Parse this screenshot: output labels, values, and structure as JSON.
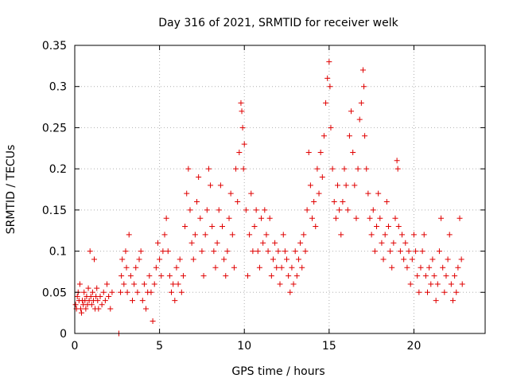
{
  "chart_data": {
    "type": "scatter",
    "title": "Day 316 of 2021, SRMTID for receiver welk",
    "xlabel": "GPS time / hours",
    "ylabel": "SRMTID / TECUs",
    "xlim": [
      0,
      24.2
    ],
    "ylim": [
      0,
      0.35
    ],
    "x_ticks": [
      0,
      5,
      10,
      15,
      20
    ],
    "x_tick_labels": [
      "0",
      "5",
      "10",
      "15",
      "20"
    ],
    "y_ticks": [
      0,
      0.05,
      0.1,
      0.15,
      0.2,
      0.25,
      0.3,
      0.35
    ],
    "y_tick_labels": [
      "0",
      "0.05",
      "0.1",
      "0.15",
      "0.2",
      "0.25",
      "0.3",
      "0.35"
    ],
    "grid": true,
    "marker": "+",
    "colors": {
      "series": "#e00000",
      "grid": "#b0b0b0",
      "axis": "#000000"
    },
    "series": [
      {
        "name": "SRMTID",
        "points": [
          [
            0.05,
            0.035
          ],
          [
            0.1,
            0.03
          ],
          [
            0.15,
            0.045
          ],
          [
            0.2,
            0.05
          ],
          [
            0.25,
            0.04
          ],
          [
            0.3,
            0.06
          ],
          [
            0.35,
            0.03
          ],
          [
            0.4,
            0.025
          ],
          [
            0.45,
            0.04
          ],
          [
            0.5,
            0.035
          ],
          [
            0.55,
            0.05
          ],
          [
            0.6,
            0.04
          ],
          [
            0.65,
            0.03
          ],
          [
            0.7,
            0.045
          ],
          [
            0.75,
            0.035
          ],
          [
            0.8,
            0.055
          ],
          [
            0.85,
            0.04
          ],
          [
            0.9,
            0.1
          ],
          [
            0.95,
            0.045
          ],
          [
            1.0,
            0.035
          ],
          [
            1.05,
            0.05
          ],
          [
            1.1,
            0.04
          ],
          [
            1.15,
            0.09
          ],
          [
            1.2,
            0.03
          ],
          [
            1.25,
            0.045
          ],
          [
            1.3,
            0.055
          ],
          [
            1.35,
            0.04
          ],
          [
            1.4,
            0.03
          ],
          [
            1.5,
            0.045
          ],
          [
            1.6,
            0.035
          ],
          [
            1.7,
            0.05
          ],
          [
            1.8,
            0.04
          ],
          [
            1.9,
            0.06
          ],
          [
            2.0,
            0.045
          ],
          [
            2.1,
            0.03
          ],
          [
            2.2,
            0.05
          ],
          [
            2.6,
            0.0
          ],
          [
            2.7,
            0.05
          ],
          [
            2.75,
            0.07
          ],
          [
            2.8,
            0.09
          ],
          [
            2.9,
            0.06
          ],
          [
            3.0,
            0.1
          ],
          [
            3.05,
            0.08
          ],
          [
            3.1,
            0.05
          ],
          [
            3.2,
            0.12
          ],
          [
            3.3,
            0.07
          ],
          [
            3.4,
            0.04
          ],
          [
            3.5,
            0.06
          ],
          [
            3.6,
            0.08
          ],
          [
            3.7,
            0.05
          ],
          [
            3.8,
            0.09
          ],
          [
            3.9,
            0.1
          ],
          [
            4.0,
            0.04
          ],
          [
            4.1,
            0.06
          ],
          [
            4.2,
            0.03
          ],
          [
            4.3,
            0.05
          ],
          [
            4.4,
            0.07
          ],
          [
            4.5,
            0.05
          ],
          [
            4.6,
            0.015
          ],
          [
            4.7,
            0.06
          ],
          [
            4.8,
            0.08
          ],
          [
            4.9,
            0.11
          ],
          [
            5.0,
            0.09
          ],
          [
            5.1,
            0.07
          ],
          [
            5.2,
            0.1
          ],
          [
            5.3,
            0.12
          ],
          [
            5.4,
            0.14
          ],
          [
            5.5,
            0.1
          ],
          [
            5.6,
            0.07
          ],
          [
            5.7,
            0.05
          ],
          [
            5.8,
            0.06
          ],
          [
            5.9,
            0.04
          ],
          [
            6.0,
            0.08
          ],
          [
            6.1,
            0.06
          ],
          [
            6.2,
            0.09
          ],
          [
            6.3,
            0.05
          ],
          [
            6.4,
            0.07
          ],
          [
            6.5,
            0.13
          ],
          [
            6.6,
            0.17
          ],
          [
            6.7,
            0.2
          ],
          [
            6.8,
            0.15
          ],
          [
            6.9,
            0.11
          ],
          [
            7.0,
            0.09
          ],
          [
            7.1,
            0.12
          ],
          [
            7.2,
            0.16
          ],
          [
            7.3,
            0.19
          ],
          [
            7.4,
            0.14
          ],
          [
            7.5,
            0.1
          ],
          [
            7.6,
            0.07
          ],
          [
            7.7,
            0.12
          ],
          [
            7.8,
            0.15
          ],
          [
            7.9,
            0.2
          ],
          [
            8.0,
            0.18
          ],
          [
            8.1,
            0.13
          ],
          [
            8.2,
            0.1
          ],
          [
            8.3,
            0.08
          ],
          [
            8.4,
            0.11
          ],
          [
            8.5,
            0.15
          ],
          [
            8.6,
            0.18
          ],
          [
            8.7,
            0.13
          ],
          [
            8.8,
            0.09
          ],
          [
            8.9,
            0.07
          ],
          [
            9.0,
            0.1
          ],
          [
            9.1,
            0.14
          ],
          [
            9.2,
            0.17
          ],
          [
            9.3,
            0.12
          ],
          [
            9.4,
            0.08
          ],
          [
            9.5,
            0.2
          ],
          [
            9.6,
            0.16
          ],
          [
            9.7,
            0.22
          ],
          [
            9.8,
            0.28
          ],
          [
            9.85,
            0.27
          ],
          [
            9.9,
            0.25
          ],
          [
            9.95,
            0.2
          ],
          [
            10.0,
            0.23
          ],
          [
            10.1,
            0.15
          ],
          [
            10.2,
            0.07
          ],
          [
            10.3,
            0.12
          ],
          [
            10.4,
            0.17
          ],
          [
            10.5,
            0.1
          ],
          [
            10.6,
            0.13
          ],
          [
            10.7,
            0.15
          ],
          [
            10.8,
            0.1
          ],
          [
            10.9,
            0.08
          ],
          [
            11.0,
            0.14
          ],
          [
            11.1,
            0.11
          ],
          [
            11.2,
            0.15
          ],
          [
            11.3,
            0.12
          ],
          [
            11.4,
            0.1
          ],
          [
            11.5,
            0.14
          ],
          [
            11.6,
            0.07
          ],
          [
            11.7,
            0.09
          ],
          [
            11.8,
            0.11
          ],
          [
            11.9,
            0.08
          ],
          [
            12.0,
            0.1
          ],
          [
            12.1,
            0.06
          ],
          [
            12.2,
            0.08
          ],
          [
            12.3,
            0.12
          ],
          [
            12.4,
            0.1
          ],
          [
            12.5,
            0.09
          ],
          [
            12.6,
            0.07
          ],
          [
            12.7,
            0.05
          ],
          [
            12.8,
            0.08
          ],
          [
            12.9,
            0.06
          ],
          [
            13.0,
            0.1
          ],
          [
            13.1,
            0.07
          ],
          [
            13.2,
            0.09
          ],
          [
            13.3,
            0.11
          ],
          [
            13.4,
            0.08
          ],
          [
            13.5,
            0.12
          ],
          [
            13.6,
            0.1
          ],
          [
            13.7,
            0.15
          ],
          [
            13.8,
            0.22
          ],
          [
            13.9,
            0.18
          ],
          [
            14.0,
            0.14
          ],
          [
            14.1,
            0.16
          ],
          [
            14.2,
            0.13
          ],
          [
            14.3,
            0.2
          ],
          [
            14.4,
            0.17
          ],
          [
            14.5,
            0.22
          ],
          [
            14.6,
            0.19
          ],
          [
            14.7,
            0.24
          ],
          [
            14.8,
            0.28
          ],
          [
            14.9,
            0.31
          ],
          [
            15.0,
            0.33
          ],
          [
            15.05,
            0.3
          ],
          [
            15.1,
            0.25
          ],
          [
            15.2,
            0.2
          ],
          [
            15.3,
            0.16
          ],
          [
            15.4,
            0.14
          ],
          [
            15.5,
            0.18
          ],
          [
            15.6,
            0.15
          ],
          [
            15.7,
            0.12
          ],
          [
            15.8,
            0.16
          ],
          [
            15.9,
            0.2
          ],
          [
            16.0,
            0.18
          ],
          [
            16.1,
            0.15
          ],
          [
            16.2,
            0.24
          ],
          [
            16.3,
            0.27
          ],
          [
            16.4,
            0.22
          ],
          [
            16.5,
            0.18
          ],
          [
            16.6,
            0.14
          ],
          [
            16.7,
            0.2
          ],
          [
            16.8,
            0.26
          ],
          [
            16.9,
            0.28
          ],
          [
            17.0,
            0.32
          ],
          [
            17.05,
            0.3
          ],
          [
            17.1,
            0.24
          ],
          [
            17.2,
            0.2
          ],
          [
            17.3,
            0.17
          ],
          [
            17.4,
            0.14
          ],
          [
            17.5,
            0.12
          ],
          [
            17.6,
            0.15
          ],
          [
            17.7,
            0.1
          ],
          [
            17.8,
            0.13
          ],
          [
            17.9,
            0.17
          ],
          [
            18.0,
            0.14
          ],
          [
            18.1,
            0.11
          ],
          [
            18.2,
            0.09
          ],
          [
            18.3,
            0.12
          ],
          [
            18.4,
            0.16
          ],
          [
            18.5,
            0.13
          ],
          [
            18.6,
            0.1
          ],
          [
            18.7,
            0.08
          ],
          [
            18.8,
            0.11
          ],
          [
            18.9,
            0.14
          ],
          [
            19.0,
            0.21
          ],
          [
            19.05,
            0.2
          ],
          [
            19.1,
            0.13
          ],
          [
            19.2,
            0.1
          ],
          [
            19.3,
            0.12
          ],
          [
            19.4,
            0.09
          ],
          [
            19.5,
            0.11
          ],
          [
            19.6,
            0.08
          ],
          [
            19.7,
            0.1
          ],
          [
            19.8,
            0.06
          ],
          [
            19.9,
            0.09
          ],
          [
            20.0,
            0.12
          ],
          [
            20.1,
            0.1
          ],
          [
            20.2,
            0.07
          ],
          [
            20.3,
            0.05
          ],
          [
            20.4,
            0.08
          ],
          [
            20.5,
            0.1
          ],
          [
            20.6,
            0.12
          ],
          [
            20.7,
            0.07
          ],
          [
            20.8,
            0.05
          ],
          [
            20.9,
            0.08
          ],
          [
            21.0,
            0.06
          ],
          [
            21.1,
            0.09
          ],
          [
            21.2,
            0.07
          ],
          [
            21.3,
            0.04
          ],
          [
            21.4,
            0.06
          ],
          [
            21.5,
            0.1
          ],
          [
            21.6,
            0.14
          ],
          [
            21.7,
            0.08
          ],
          [
            21.8,
            0.05
          ],
          [
            21.9,
            0.07
          ],
          [
            22.0,
            0.09
          ],
          [
            22.1,
            0.12
          ],
          [
            22.2,
            0.06
          ],
          [
            22.3,
            0.04
          ],
          [
            22.4,
            0.07
          ],
          [
            22.5,
            0.05
          ],
          [
            22.6,
            0.08
          ],
          [
            22.7,
            0.14
          ],
          [
            22.8,
            0.09
          ],
          [
            22.85,
            0.06
          ]
        ]
      }
    ]
  }
}
